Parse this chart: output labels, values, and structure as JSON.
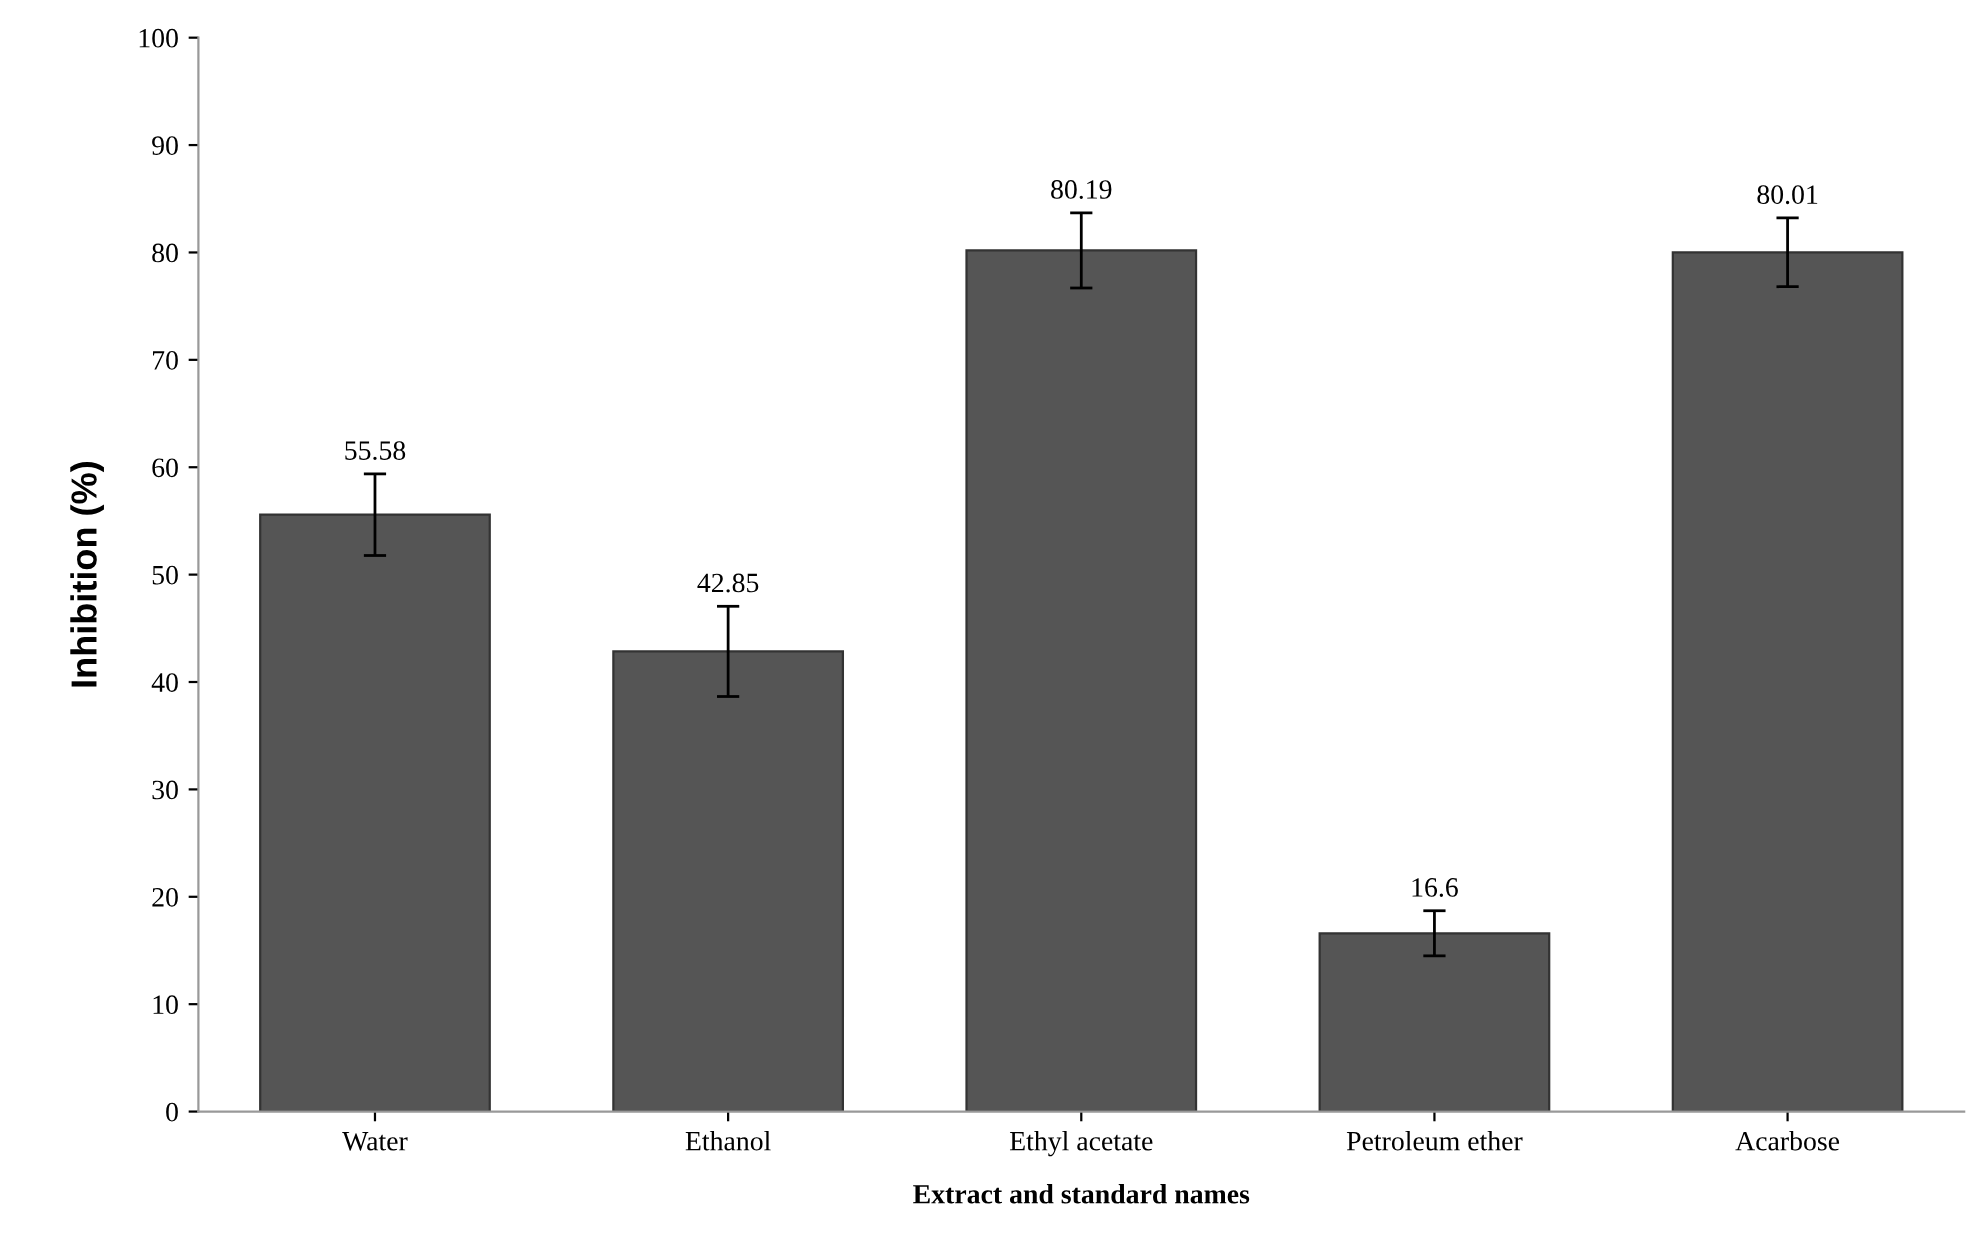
{
  "chart_data": {
    "type": "bar",
    "xlabel": "Extract and standard names",
    "ylabel": "Inhibition (%)",
    "categories": [
      "Water",
      "Ethanol",
      "Ethyl acetate",
      "Petroleum ether",
      "Acarbose"
    ],
    "values": [
      55.58,
      42.85,
      80.19,
      16.6,
      80.01
    ],
    "errors": [
      3.8,
      4.2,
      3.5,
      2.1,
      3.2
    ],
    "color": "#555555",
    "ylim": [
      0,
      100
    ],
    "yticks": [
      0,
      10,
      20,
      30,
      40,
      50,
      60,
      70,
      80,
      90,
      100
    ],
    "data_labels": true,
    "grid": false,
    "legend": false
  }
}
